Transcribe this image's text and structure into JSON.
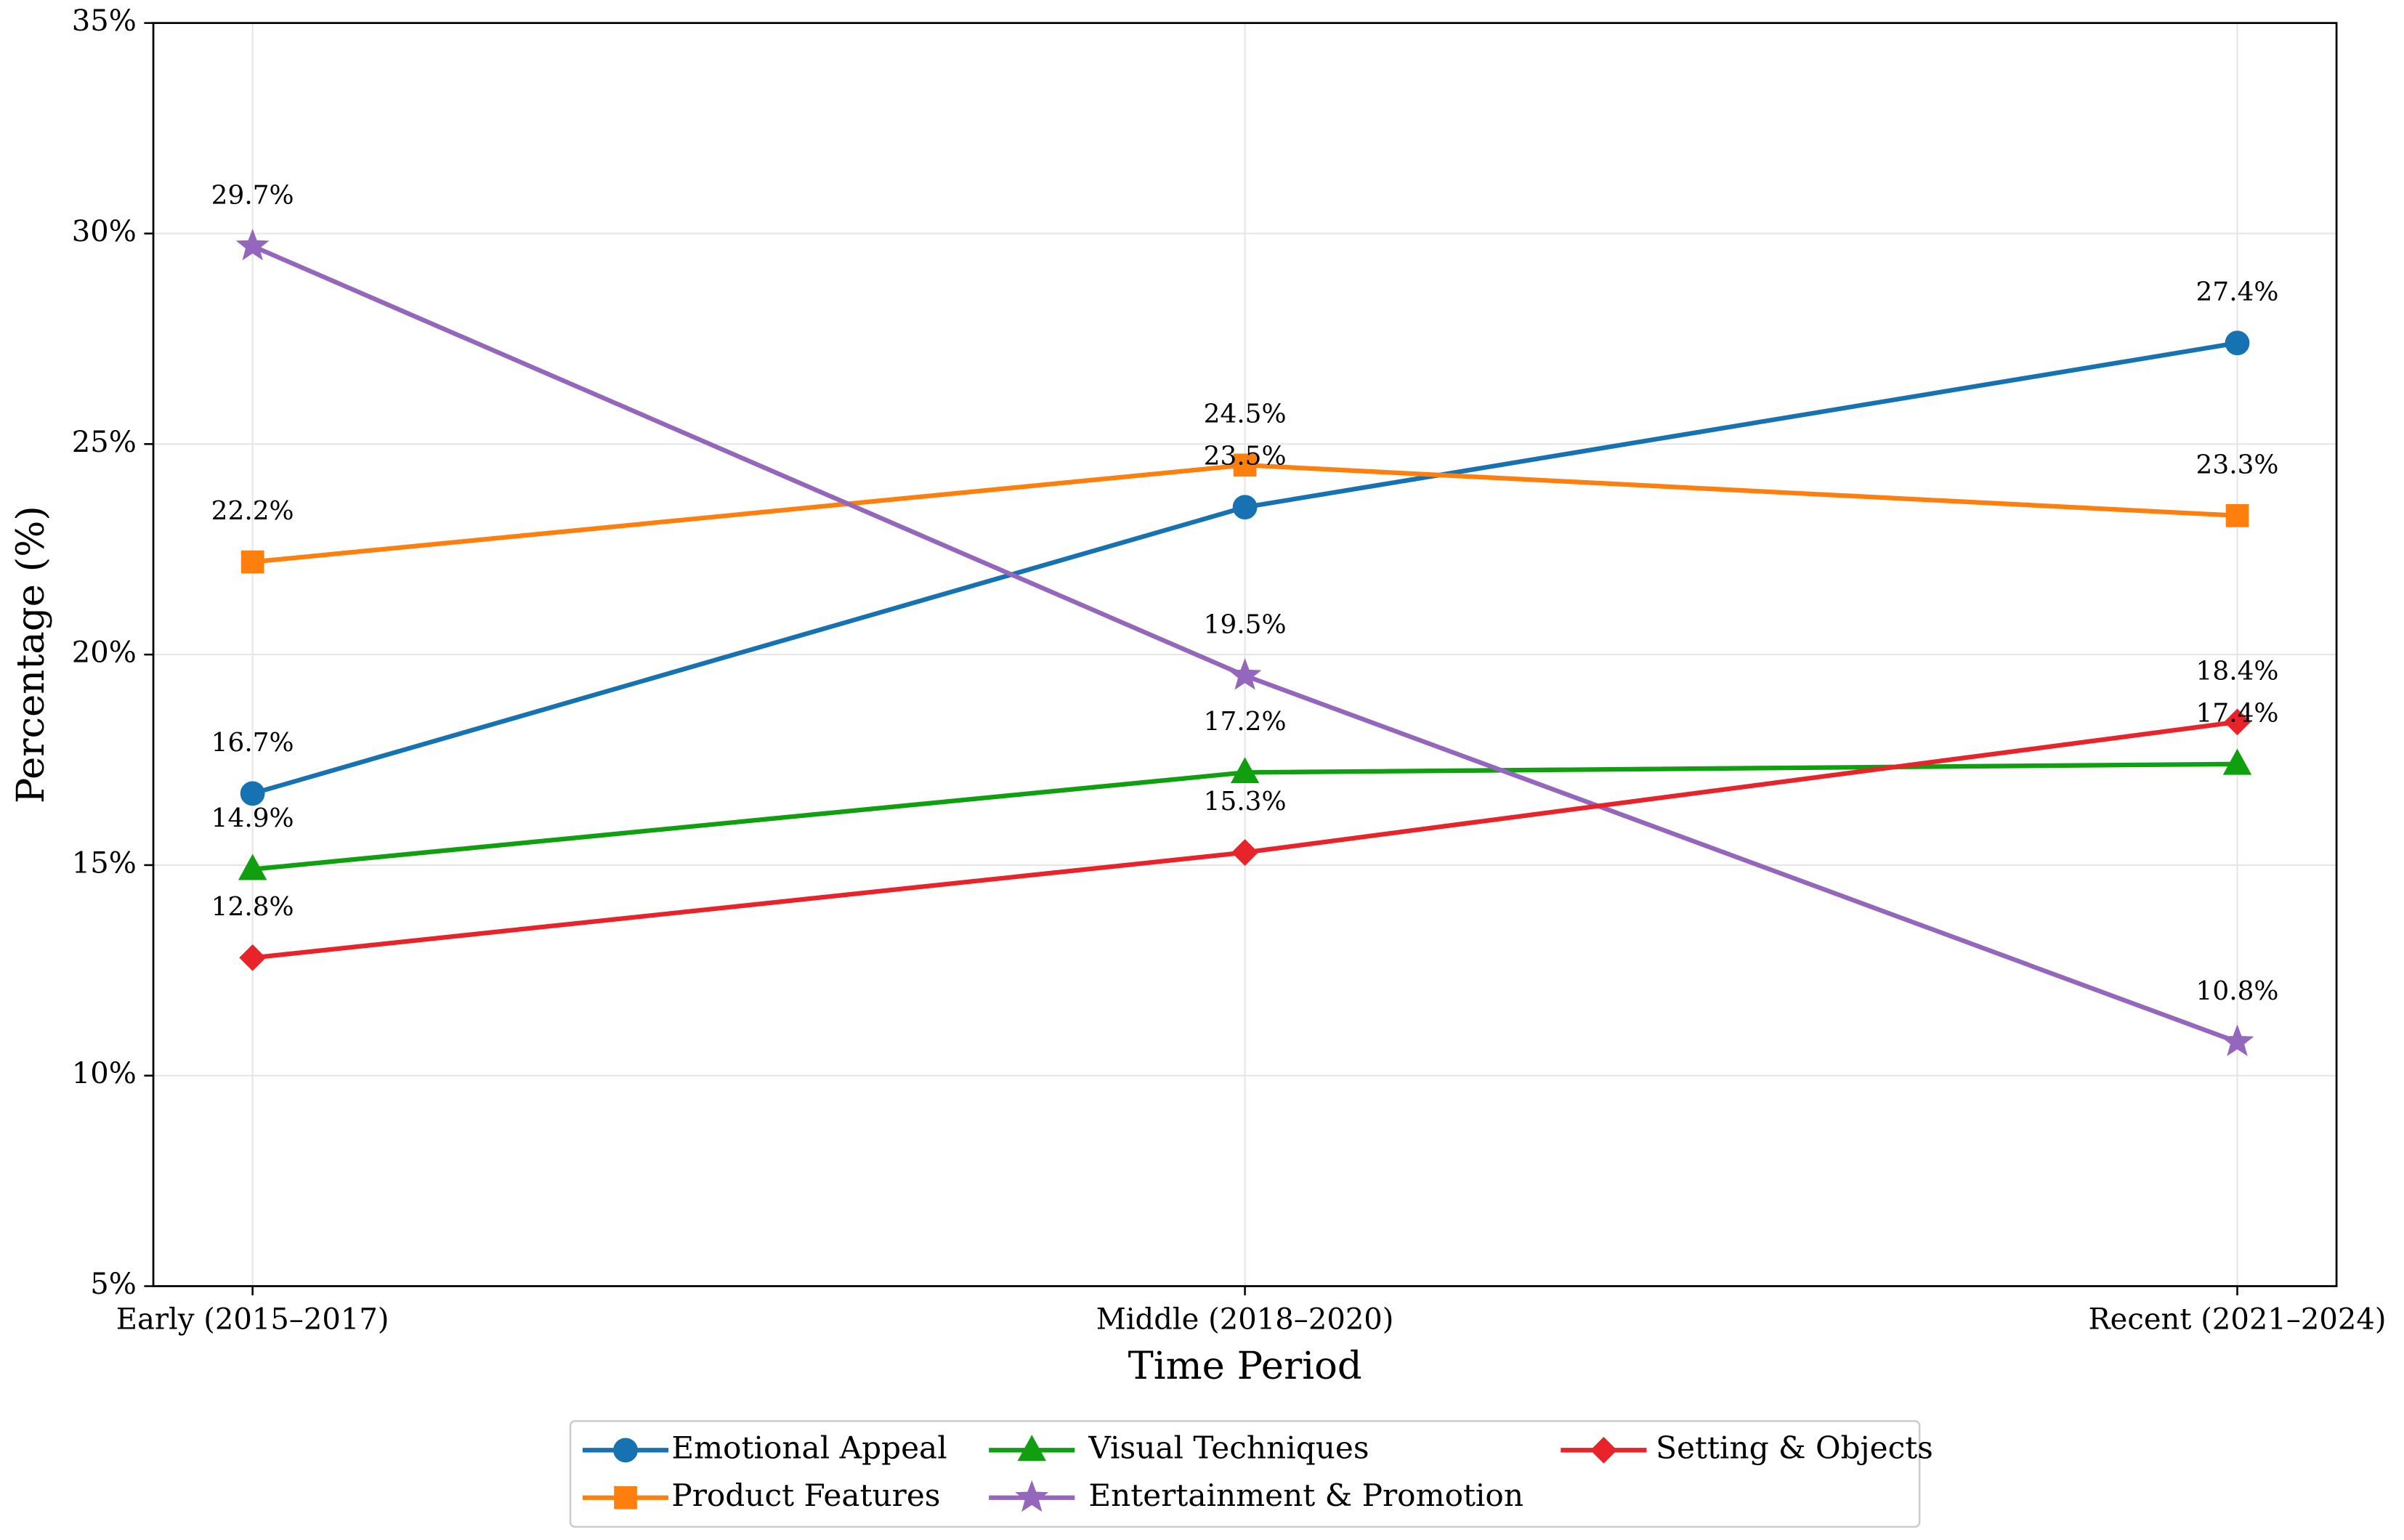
{
  "chart_data": {
    "type": "line",
    "xlabel": "Time Period",
    "ylabel": "Percentage (%)",
    "categories": [
      "Early (2015–2017)",
      "Middle (2018–2020)",
      "Recent (2021–2024)"
    ],
    "ylim": [
      5,
      35
    ],
    "yticks": [
      {
        "value": 5,
        "label": "5%"
      },
      {
        "value": 10,
        "label": "10%"
      },
      {
        "value": 15,
        "label": "15%"
      },
      {
        "value": 20,
        "label": "20%"
      },
      {
        "value": 25,
        "label": "25%"
      },
      {
        "value": 30,
        "label": "30%"
      },
      {
        "value": 35,
        "label": "35%"
      }
    ],
    "grid": true,
    "legend": "bottom",
    "series": [
      {
        "name": "Emotional Appeal",
        "color": "#1672b0",
        "marker": "circle",
        "values": [
          16.7,
          23.5,
          27.4
        ],
        "value_labels": [
          "16.7%",
          "23.5%",
          "27.4%"
        ]
      },
      {
        "name": "Product Features",
        "color": "#ff7f0e",
        "marker": "square",
        "values": [
          22.2,
          24.5,
          23.3
        ],
        "value_labels": [
          "22.2%",
          "24.5%",
          "23.3%"
        ]
      },
      {
        "name": "Visual Techniques",
        "color": "#0f9f0f",
        "marker": "triangle",
        "values": [
          14.9,
          17.2,
          17.4
        ],
        "value_labels": [
          "14.9%",
          "17.2%",
          "17.4%"
        ]
      },
      {
        "name": "Entertainment & Promotion",
        "color": "#9467bd",
        "marker": "star",
        "values": [
          29.7,
          19.5,
          10.8
        ],
        "value_labels": [
          "29.7%",
          "19.5%",
          "10.8%"
        ]
      },
      {
        "name": "Setting & Objects",
        "color": "#e8232a",
        "marker": "diamond",
        "values": [
          12.8,
          15.3,
          18.4
        ],
        "value_labels": [
          "12.8%",
          "15.3%",
          "18.4%"
        ]
      }
    ]
  }
}
